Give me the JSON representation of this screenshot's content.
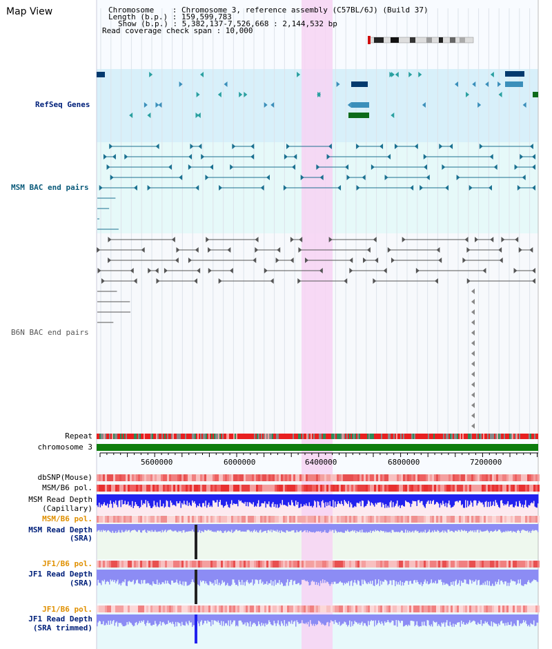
{
  "app": {
    "title": "Map View"
  },
  "info": {
    "chromosome": "Chromosome    : Chromosome 3, reference assembly (C57BL/6J) (Build 37)",
    "length": "Length (b.p.) : 159,599,783",
    "show": "Show (b.p.) : 5,382,137-7,526,668 : 2,144,532 bp",
    "coverage": "Read coverage check span : 10,000"
  },
  "tracks": {
    "refseq": "RefSeq Genes",
    "msm_bac": "MSM BAC end pairs",
    "b6n_bac": "B6N BAC end pairs",
    "repeat": "Repeat",
    "chromosome": "chromosome 3",
    "dbsnp": "dbSNP(Mouse)",
    "msm_pol": "MSM/B6 pol.",
    "msm_depth_cap_1": "MSM Read Depth",
    "msm_depth_cap_2": "(Capillary)",
    "msm_pol2": "MSM/B6 pol.",
    "msm_depth_sra_1": "MSM Read Depth",
    "msm_depth_sra_2": "(SRA)",
    "jf1_pol": "JF1/B6 pol.",
    "jf1_depth_1": "JF1 Read Depth",
    "jf1_depth_2": "(SRA)",
    "jf1_pol2": "JF1/B6 pol.",
    "jf1_trim_1": "JF1 Read Depth",
    "jf1_trim_2": "(SRA trimmed)"
  },
  "axis": {
    "ticks": [
      "5600000",
      "6000000",
      "6400000",
      "6800000",
      "7200000"
    ]
  },
  "colors": {
    "highlight": "#f7d4f3",
    "refseq_bg": "#d8f0fa",
    "msm_bg": "#e6f9f9",
    "gene_dark": "#033a6e",
    "gene_mid": "#3b8fba",
    "gene_green": "#0d6b1a",
    "msm_line": "#1a7090",
    "b6n_line": "#555555",
    "chrom_green": "#0d7d0d",
    "depth_blue": "#2222ee",
    "depth_light": "#8c8cf4",
    "label_navy": "#00207a",
    "label_orange": "#e09000"
  }
}
